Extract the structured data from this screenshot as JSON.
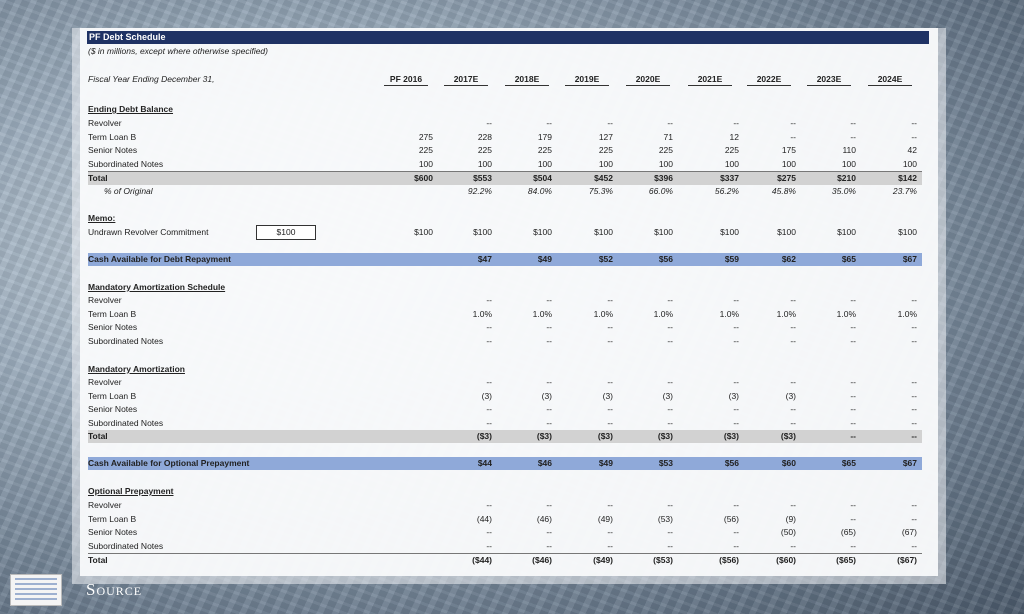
{
  "title": "PF Debt Schedule",
  "subtitle": "($ in millions, except where otherwise specified)",
  "fiscal_label": "Fiscal Year Ending December 31,",
  "columns": [
    "PF 2016",
    "2017E",
    "2018E",
    "2019E",
    "2020E",
    "2021E",
    "2022E",
    "2023E",
    "2024E"
  ],
  "source_label": "Source",
  "commitment_value": "$100",
  "sections": {
    "ending_debt": {
      "header": "Ending Debt Balance",
      "rows": [
        {
          "label": "Revolver",
          "values": [
            "",
            "--",
            "--",
            "--",
            "--",
            "--",
            "--",
            "--",
            "--"
          ]
        },
        {
          "label": "Term Loan B",
          "values": [
            "275",
            "228",
            "179",
            "127",
            "71",
            "12",
            "--",
            "--",
            "--"
          ]
        },
        {
          "label": "Senior Notes",
          "values": [
            "225",
            "225",
            "225",
            "225",
            "225",
            "225",
            "175",
            "110",
            "42"
          ]
        },
        {
          "label": "Subordinated Notes",
          "values": [
            "100",
            "100",
            "100",
            "100",
            "100",
            "100",
            "100",
            "100",
            "100"
          ]
        },
        {
          "label": "Total",
          "values": [
            "$600",
            "$553",
            "$504",
            "$452",
            "$396",
            "$337",
            "$275",
            "$210",
            "$142"
          ]
        },
        {
          "label": "% of Original",
          "values": [
            "",
            "92.2%",
            "84.0%",
            "75.3%",
            "66.0%",
            "56.2%",
            "45.8%",
            "35.0%",
            "23.7%"
          ]
        }
      ]
    },
    "memo": {
      "header": "Memo:",
      "rows": [
        {
          "label": "Undrawn Revolver Commitment",
          "values": [
            "$100",
            "$100",
            "$100",
            "$100",
            "$100",
            "$100",
            "$100",
            "$100",
            "$100"
          ]
        }
      ]
    },
    "cash_available": {
      "label": "Cash Available for Debt Repayment",
      "values": [
        "",
        "$47",
        "$49",
        "$52",
        "$56",
        "$59",
        "$62",
        "$65",
        "$67"
      ]
    },
    "mand_schedule": {
      "header": "Mandatory Amortization Schedule",
      "rows": [
        {
          "label": "Revolver",
          "values": [
            "",
            "--",
            "--",
            "--",
            "--",
            "--",
            "--",
            "--",
            "--"
          ]
        },
        {
          "label": "Term Loan B",
          "values": [
            "",
            "1.0%",
            "1.0%",
            "1.0%",
            "1.0%",
            "1.0%",
            "1.0%",
            "1.0%",
            "1.0%"
          ]
        },
        {
          "label": "Senior Notes",
          "values": [
            "",
            "--",
            "--",
            "--",
            "--",
            "--",
            "--",
            "--",
            "--"
          ]
        },
        {
          "label": "Subordinated Notes",
          "values": [
            "",
            "--",
            "--",
            "--",
            "--",
            "--",
            "--",
            "--",
            "--"
          ]
        }
      ]
    },
    "mand_amort": {
      "header": "Mandatory Amortization",
      "rows": [
        {
          "label": "Revolver",
          "values": [
            "",
            "--",
            "--",
            "--",
            "--",
            "--",
            "--",
            "--",
            "--"
          ]
        },
        {
          "label": "Term Loan B",
          "values": [
            "",
            "(3)",
            "(3)",
            "(3)",
            "(3)",
            "(3)",
            "(3)",
            "--",
            "--"
          ]
        },
        {
          "label": "Senior Notes",
          "values": [
            "",
            "--",
            "--",
            "--",
            "--",
            "--",
            "--",
            "--",
            "--"
          ]
        },
        {
          "label": "Subordinated Notes",
          "values": [
            "",
            "--",
            "--",
            "--",
            "--",
            "--",
            "--",
            "--",
            "--"
          ]
        },
        {
          "label": "Total",
          "values": [
            "",
            "($3)",
            "($3)",
            "($3)",
            "($3)",
            "($3)",
            "($3)",
            "--",
            "--"
          ]
        }
      ]
    },
    "cash_optional": {
      "label": "Cash Available for Optional Prepayment",
      "values": [
        "",
        "$44",
        "$46",
        "$49",
        "$53",
        "$56",
        "$60",
        "$65",
        "$67"
      ]
    },
    "optional": {
      "header": "Optional Prepayment",
      "rows": [
        {
          "label": "Revolver",
          "values": [
            "",
            "--",
            "--",
            "--",
            "--",
            "--",
            "--",
            "--",
            "--"
          ]
        },
        {
          "label": "Term Loan B",
          "values": [
            "",
            "(44)",
            "(46)",
            "(49)",
            "(53)",
            "(56)",
            "(9)",
            "--",
            "--"
          ]
        },
        {
          "label": "Senior Notes",
          "values": [
            "",
            "--",
            "--",
            "--",
            "--",
            "--",
            "(50)",
            "(65)",
            "(67)"
          ]
        },
        {
          "label": "Subordinated Notes",
          "values": [
            "",
            "--",
            "--",
            "--",
            "--",
            "--",
            "--",
            "--",
            "--"
          ]
        },
        {
          "label": "Total",
          "values": [
            "",
            "($44)",
            "($46)",
            "($49)",
            "($53)",
            "($56)",
            "($60)",
            "($65)",
            "($67)"
          ]
        }
      ]
    }
  }
}
